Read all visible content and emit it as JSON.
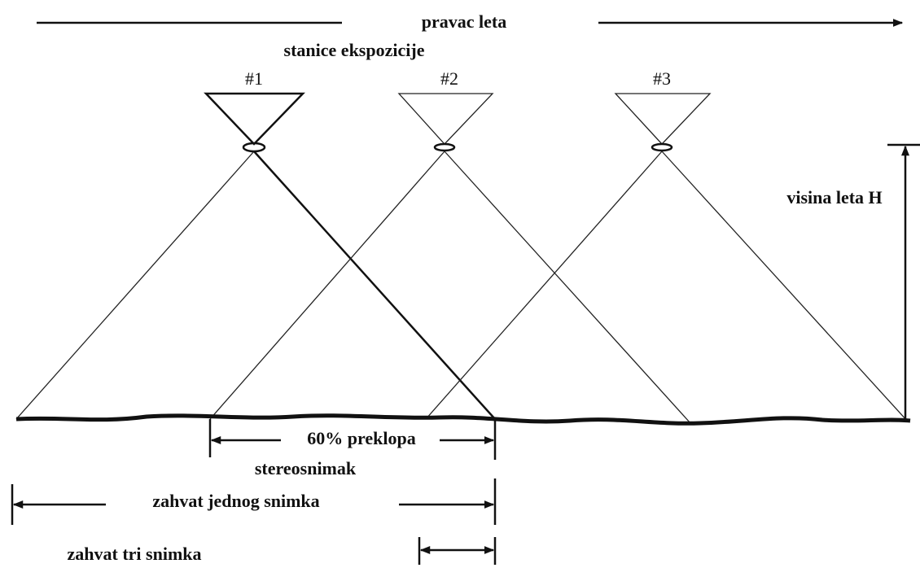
{
  "title": "pravac leta",
  "stations": {
    "label": "stanice ekspozicije",
    "items": [
      "#1",
      "#2",
      "#3"
    ]
  },
  "height_label": "visina leta H",
  "overlap_label": "60% preklopa",
  "stereo_label": "stereosnimak",
  "single_coverage_label": "zahvat jednog snimka",
  "triple_coverage_label": "zahvat tri snimka"
}
